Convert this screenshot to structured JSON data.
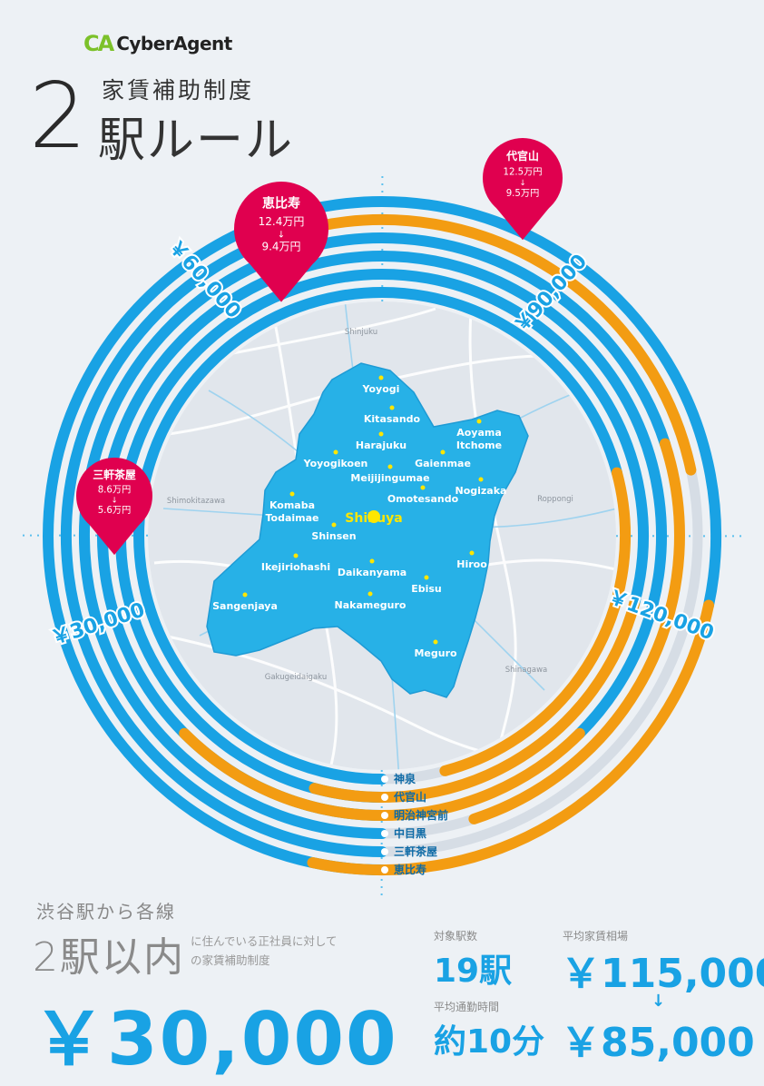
{
  "brand": {
    "logo_mark": "CA",
    "logo_text": "CyberAgent"
  },
  "title": {
    "number": "2",
    "subtitle": "家賃補助制度",
    "main": "駅ルール"
  },
  "colors": {
    "blue": "#19a2e4",
    "orange": "#f39c12",
    "pink": "#e0004f",
    "area": "#27b1e7"
  },
  "scale_labels": [
    "￥30,000",
    "￥60,000",
    "￥90,000",
    "￥120,000"
  ],
  "line_labels": [
    "恵比寿",
    "三軒茶屋",
    "中目黒",
    "明治神宮前",
    "代官山",
    "神泉"
  ],
  "rent_rings": [
    {
      "name": "恵比寿",
      "value": 124000
    },
    {
      "name": "三軒茶屋",
      "value": 86000
    },
    {
      "name": "中目黒",
      "value": 114000
    },
    {
      "name": "明治神宮前",
      "value": 135000
    },
    {
      "name": "代官山",
      "value": 125000
    },
    {
      "name": "神泉",
      "value": 115000
    }
  ],
  "pins": [
    {
      "name": "恵比寿",
      "before": "12.4万円",
      "arrow": "↓",
      "after": "9.4万円"
    },
    {
      "name": "代官山",
      "before": "12.5万円",
      "arrow": "↓",
      "after": "9.5万円"
    },
    {
      "name": "三軒茶屋",
      "before": "8.6万円",
      "arrow": "↓",
      "after": "5.6万円"
    }
  ],
  "outer_places": [
    "Shinjuku",
    "Shimokitazawa",
    "Roppongi",
    "Gakugeidaigaku",
    "Shinagawa"
  ],
  "stations": [
    "Yoyogi",
    "Kitasando",
    "Harajuku",
    "Aoyama",
    "Itchome",
    "Yoyogikoen",
    "Gaienmae",
    "Meijijingumae",
    "Nogizaka",
    "Komaba",
    "Todaimae",
    "Omotesando",
    "Shibuya",
    "Shinsen",
    "Ikejiriohashi",
    "Daikanyama",
    "Hiroo",
    "Ebisu",
    "Sangenjaya",
    "Nakameguro",
    "Meguro"
  ],
  "bottom": {
    "line1": "渋谷駅から各線",
    "line2": "2駅以内",
    "desc": "に住んでいる正社員に対しての家賃補助制度",
    "amount": "￥30,000"
  },
  "stats": {
    "count_label": "対象駅数",
    "count_value": "19駅",
    "avg_label": "平均家賃相場",
    "avg_before": "￥115,000",
    "avg_arrow": "↓",
    "avg_after": "￥85,000",
    "commute_label": "平均通勤時間",
    "commute_value": "約10分"
  }
}
